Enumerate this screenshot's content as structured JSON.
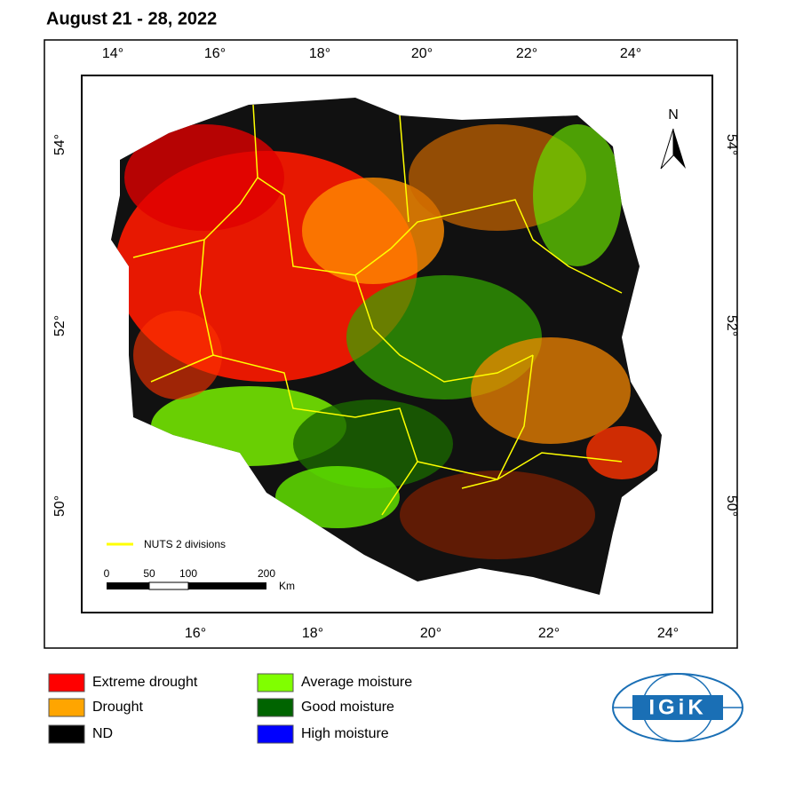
{
  "title": "August 21 - 28, 2022",
  "top_labels": [
    "14°",
    "16°",
    "18°",
    "20°",
    "22°",
    "24°"
  ],
  "bottom_labels": [
    "16°",
    "18°",
    "20°",
    "22°",
    "24°"
  ],
  "left_labels": [
    "54°",
    "52°",
    "50°"
  ],
  "right_labels": [
    "54°",
    "52°",
    "50°"
  ],
  "north": "N",
  "nuts_label": "NUTS 2 divisions",
  "scale": {
    "labels": [
      "0",
      "50",
      "100",
      "200"
    ],
    "unit": "Km"
  },
  "legend": [
    {
      "label": "Extreme drought",
      "color": "#ff0000"
    },
    {
      "label": "Drought",
      "color": "#ffa500"
    },
    {
      "label": "ND",
      "color": "#000000"
    },
    {
      "label": "Average moisture",
      "color": "#80ff00"
    },
    {
      "label": "Good moisture",
      "color": "#006400"
    },
    {
      "label": "High moisture",
      "color": "#0000ff"
    }
  ],
  "logo": "IGiK"
}
